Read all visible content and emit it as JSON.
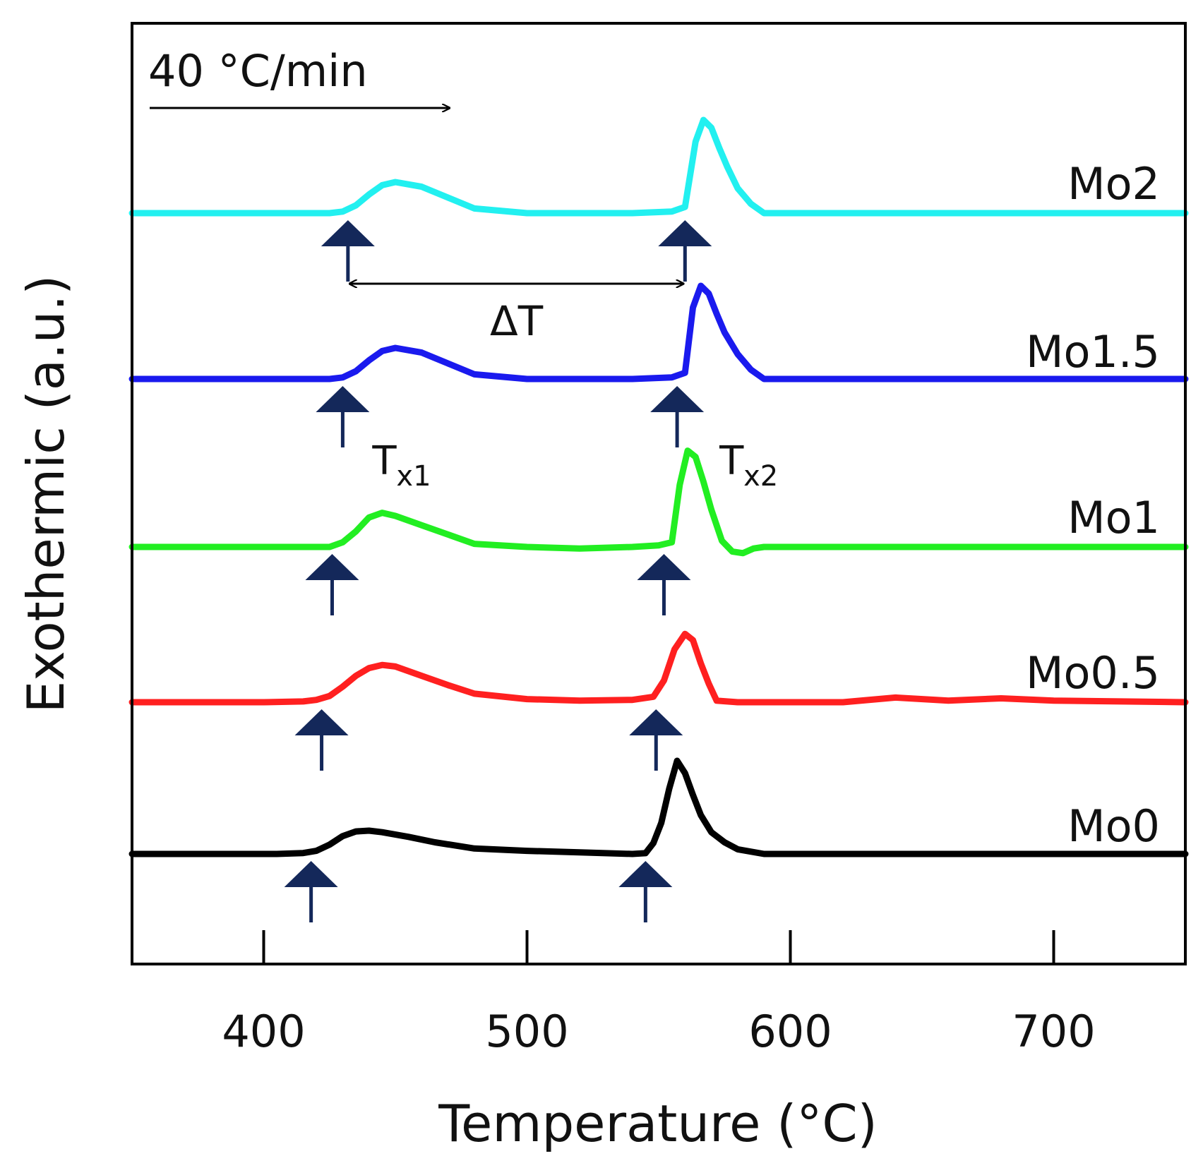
{
  "chart_data": {
    "type": "line",
    "title": "",
    "xlabel": "Temperature (°C)",
    "ylabel": "Exothermic (a.u.)",
    "xlim": [
      350,
      750
    ],
    "xticks": [
      400,
      500,
      600,
      700
    ],
    "xtick_labels": [
      "400",
      "500",
      "600",
      "700"
    ],
    "yticks_visible": false,
    "grid": false,
    "heating_rate_label": "40 °C/min",
    "delta_t_label": "ΔT",
    "tx1_label": {
      "base": "T",
      "sub": "x1"
    },
    "tx2_label": {
      "base": "T",
      "sub": "x2"
    },
    "series": [
      {
        "name": "Mo0",
        "color": "#000000",
        "offset": 0,
        "tx1": 418,
        "tx2": 545,
        "x": [
          350,
          380,
          405,
          415,
          420,
          425,
          430,
          435,
          440,
          445,
          455,
          465,
          480,
          500,
          520,
          540,
          545,
          548,
          551,
          554,
          557,
          560,
          563,
          566,
          570,
          575,
          580,
          590,
          600,
          650,
          700,
          750
        ],
        "y": [
          0,
          0,
          0,
          0.6,
          2,
          6,
          11.5,
          14.5,
          15,
          14,
          11,
          7.5,
          3.5,
          2,
          1,
          0,
          0.5,
          7,
          20,
          42,
          60,
          52,
          38,
          25,
          14,
          7.5,
          3,
          0,
          0,
          0,
          0,
          0
        ]
      },
      {
        "name": "Mo0.5",
        "color": "#ff2020",
        "offset": 0,
        "tx1": 422,
        "tx2": 549,
        "x": [
          350,
          400,
          415,
          420,
          425,
          430,
          435,
          440,
          445,
          450,
          460,
          470,
          480,
          500,
          520,
          540,
          548,
          552,
          556,
          560,
          563,
          566,
          569,
          572,
          580,
          600,
          620,
          640,
          660,
          680,
          700,
          750
        ],
        "y": [
          0,
          0,
          0.5,
          1.5,
          4,
          10,
          17,
          22,
          24,
          23,
          17,
          11,
          5.5,
          2,
          1,
          1.5,
          3.5,
          14,
          34,
          44,
          40,
          25,
          12,
          1,
          0,
          0,
          0,
          3,
          1,
          2.5,
          1,
          0
        ]
      },
      {
        "name": "Mo1",
        "color": "#22ee22",
        "offset": 0,
        "tx1": 426,
        "tx2": 552,
        "x": [
          350,
          400,
          425,
          430,
          435,
          440,
          445,
          450,
          460,
          470,
          480,
          500,
          520,
          540,
          550,
          555,
          558,
          561,
          564,
          567,
          570,
          574,
          578,
          582,
          586,
          590,
          600,
          650,
          700,
          750
        ],
        "y": [
          0,
          0,
          0,
          3,
          10,
          19,
          22,
          20,
          14,
          8,
          2,
          0,
          -1,
          0,
          1,
          3,
          40,
          62,
          58,
          42,
          24,
          4,
          -3,
          -4,
          -1,
          0,
          0,
          0,
          0,
          0
        ]
      },
      {
        "name": "Mo1.5",
        "color": "#1a1aee",
        "offset": 0,
        "tx1": 430,
        "tx2": 557,
        "x": [
          350,
          400,
          425,
          430,
          435,
          440,
          445,
          450,
          460,
          470,
          480,
          500,
          520,
          540,
          555,
          560,
          563,
          566,
          569,
          572,
          575,
          580,
          585,
          590,
          600,
          650,
          700,
          750
        ],
        "y": [
          0,
          0,
          0,
          1,
          5,
          12,
          18,
          20,
          17,
          10,
          3,
          0,
          0,
          0,
          1,
          4,
          46,
          60,
          55,
          42,
          30,
          16,
          6,
          0,
          0,
          0,
          0,
          0
        ]
      },
      {
        "name": "Mo2",
        "color": "#22f0f0",
        "offset": 0,
        "tx1": 432,
        "tx2": 560,
        "x": [
          350,
          400,
          425,
          430,
          435,
          440,
          445,
          450,
          460,
          470,
          480,
          500,
          520,
          540,
          555,
          560,
          564,
          567,
          570,
          573,
          576,
          580,
          585,
          590,
          600,
          650,
          700,
          750
        ],
        "y": [
          0,
          0,
          0,
          1,
          5,
          12,
          18,
          20,
          17,
          10,
          3,
          0,
          0,
          0,
          1,
          4,
          46,
          60,
          55,
          42,
          30,
          16,
          6,
          0,
          0,
          0,
          0,
          0
        ]
      }
    ]
  }
}
